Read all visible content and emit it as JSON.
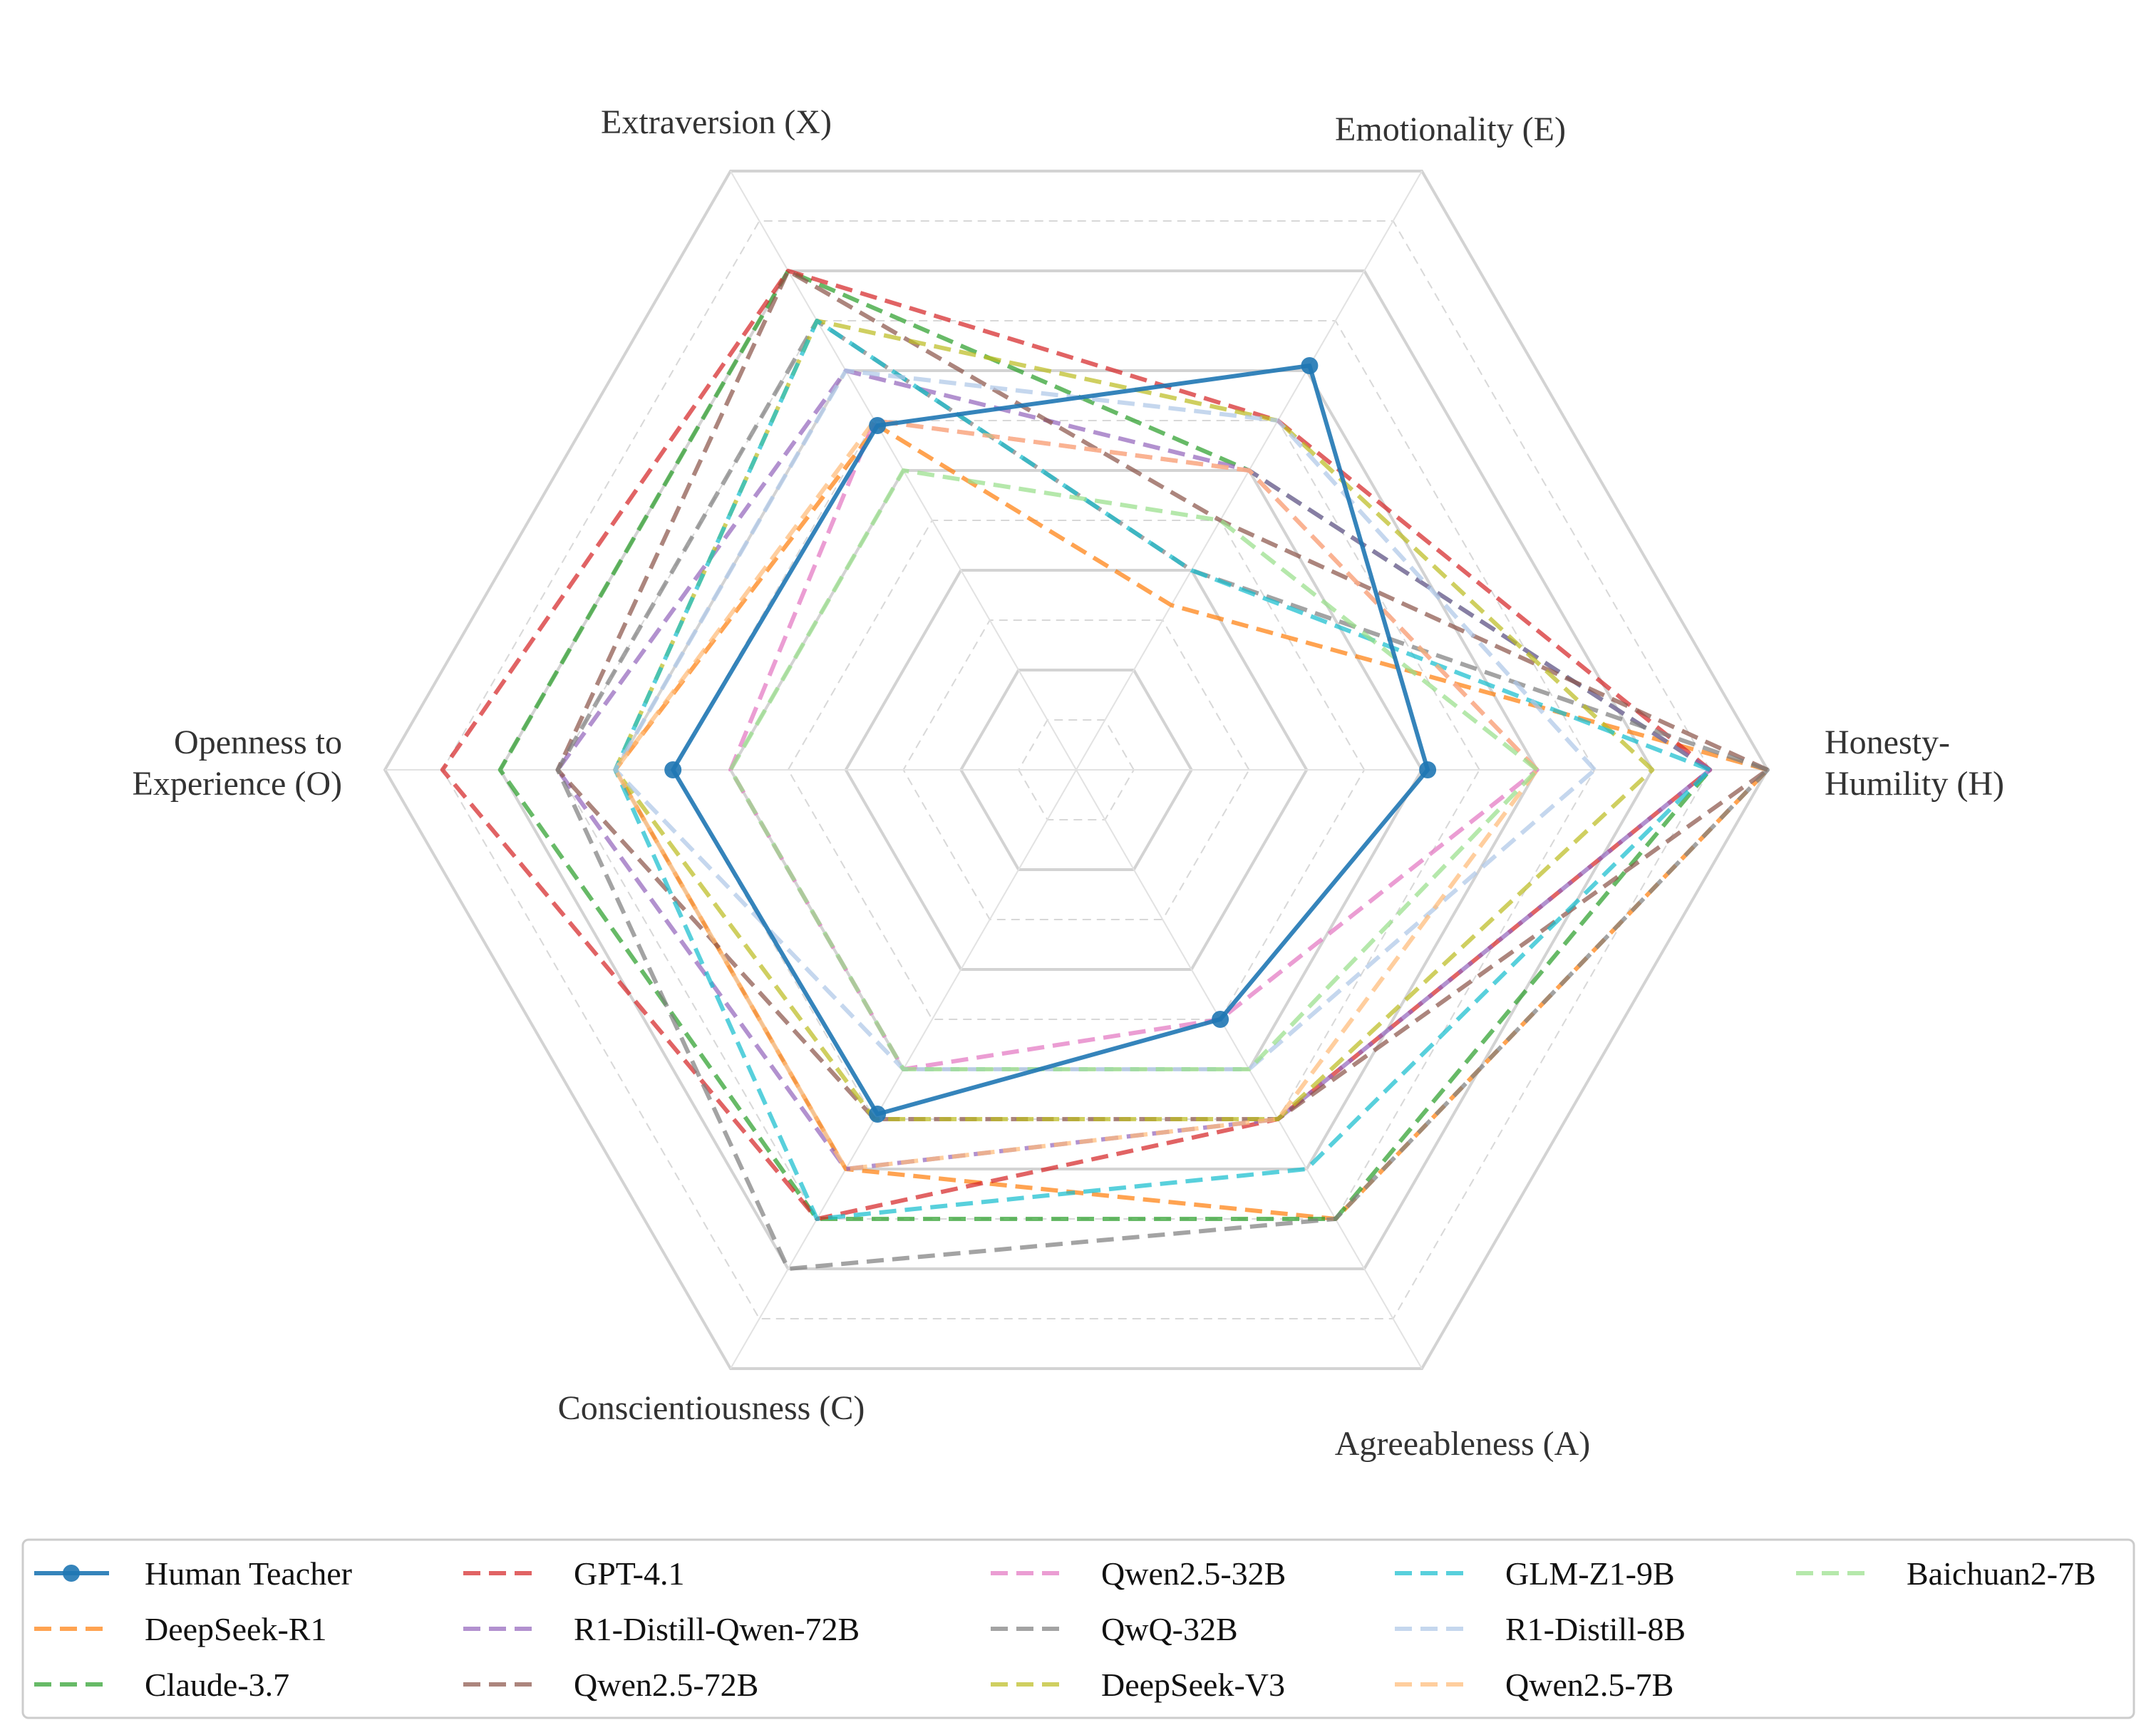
{
  "chart_data": {
    "type": "radar",
    "axes": [
      {
        "key": "H",
        "lines": [
          "Honesty-",
          "Humility (H)"
        ]
      },
      {
        "key": "E",
        "lines": [
          "Emotionality (E)"
        ]
      },
      {
        "key": "X",
        "lines": [
          "Extraversion (X)"
        ]
      },
      {
        "key": "O",
        "lines": [
          "Openness to",
          "Experience (O)"
        ]
      },
      {
        "key": "C",
        "lines": [
          "Conscientiousness (C)"
        ]
      },
      {
        "key": "A",
        "lines": [
          "Agreeableness (A)"
        ]
      }
    ],
    "rlim": [
      0,
      12
    ],
    "grid": true,
    "legend_position": "bottom",
    "series": [
      {
        "name": "Human Teacher",
        "color": "#1f77b4",
        "style": "solid-marker",
        "values": [
          6.1,
          8.1,
          6.9,
          7.0,
          6.9,
          5.0
        ]
      },
      {
        "name": "DeepSeek-R1",
        "color": "#ff7f0e",
        "style": "dashed",
        "values": [
          12.0,
          3.3,
          6.9,
          8.0,
          8.0,
          9.0
        ]
      },
      {
        "name": "Claude-3.7",
        "color": "#2ca02c",
        "style": "dashed",
        "values": [
          11.0,
          6.0,
          10.0,
          10.0,
          9.0,
          9.0
        ]
      },
      {
        "name": "GPT-4.1",
        "color": "#d62728",
        "style": "dashed",
        "values": [
          11.0,
          7.0,
          10.0,
          11.0,
          9.0,
          7.0
        ]
      },
      {
        "name": "R1-Distill-Qwen-72B",
        "color": "#9467bd",
        "style": "dashed",
        "values": [
          11.0,
          6.0,
          8.0,
          9.0,
          8.0,
          7.0
        ]
      },
      {
        "name": "Qwen2.5-72B",
        "color": "#8c564b",
        "style": "dashed",
        "values": [
          12.0,
          5.0,
          10.0,
          9.0,
          7.0,
          7.0
        ]
      },
      {
        "name": "Qwen2.5-32B",
        "color": "#e377c2",
        "style": "dashed",
        "values": [
          8.0,
          6.0,
          7.0,
          6.0,
          6.0,
          5.0
        ]
      },
      {
        "name": "QwQ-32B",
        "color": "#7f7f7f",
        "style": "dashed",
        "values": [
          12.0,
          4.0,
          9.0,
          9.0,
          10.0,
          9.0
        ]
      },
      {
        "name": "DeepSeek-V3",
        "color": "#bcbd22",
        "style": "dashed",
        "values": [
          10.0,
          7.0,
          9.0,
          8.0,
          7.0,
          7.0
        ]
      },
      {
        "name": "GLM-Z1-9B",
        "color": "#17becf",
        "style": "dashed",
        "values": [
          11.0,
          4.0,
          9.0,
          8.0,
          9.0,
          8.0
        ]
      },
      {
        "name": "R1-Distill-8B",
        "color": "#aec7e8",
        "style": "dashed",
        "values": [
          9.0,
          7.0,
          8.0,
          8.0,
          6.0,
          6.0
        ]
      },
      {
        "name": "Qwen2.5-7B",
        "color": "#ffbb78",
        "style": "dashed",
        "values": [
          8.0,
          6.0,
          7.0,
          8.0,
          8.0,
          7.0
        ]
      },
      {
        "name": "Baichuan2-7B",
        "color": "#98df8a",
        "style": "dashed",
        "values": [
          8.0,
          5.0,
          6.0,
          6.0,
          6.0,
          6.0
        ]
      }
    ]
  }
}
